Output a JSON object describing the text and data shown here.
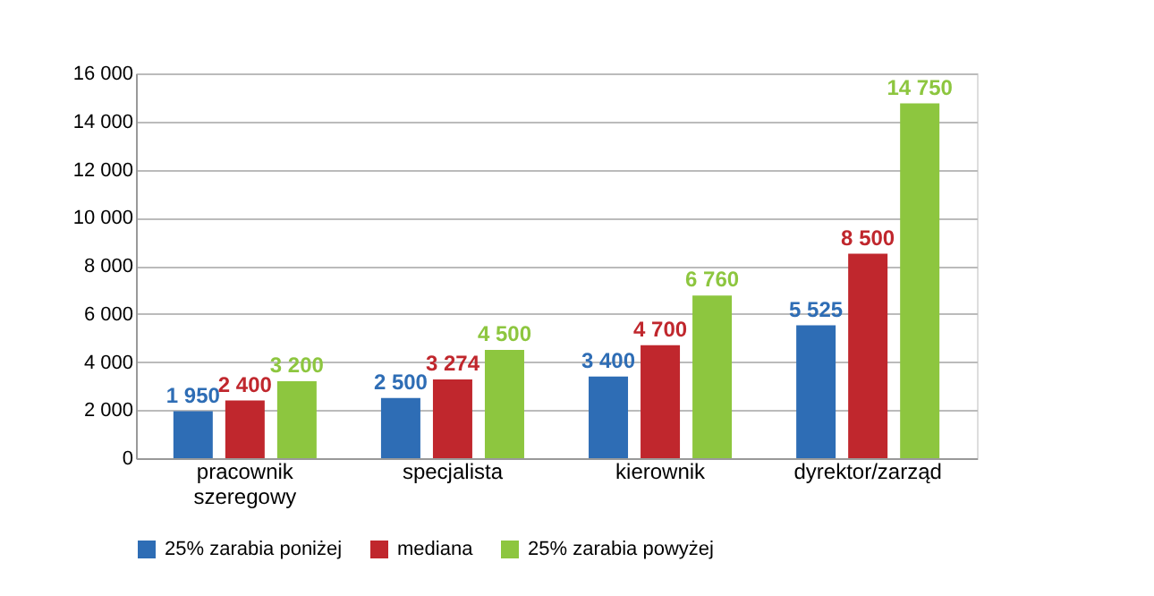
{
  "chart_data": {
    "type": "bar",
    "categories": [
      "pracownik\nszeregowy",
      "specjalista",
      "kierownik",
      "dyrektor/zarząd"
    ],
    "series": [
      {
        "name": "25% zarabia poniżej",
        "color": "#2e6db5",
        "values": [
          1950,
          2500,
          3400,
          5525
        ],
        "value_labels": [
          "1 950",
          "2 500",
          "3 400",
          "5 525"
        ]
      },
      {
        "name": "mediana",
        "color": "#c0272d",
        "values": [
          2400,
          3274,
          4700,
          8500
        ],
        "value_labels": [
          "2 400",
          "3 274",
          "4 700",
          "8 500"
        ]
      },
      {
        "name": "25% zarabia powyżej",
        "color": "#8dc63f",
        "values": [
          3200,
          4500,
          6760,
          14750
        ],
        "value_labels": [
          "3 200",
          "4 500",
          "6 760",
          "14 750"
        ]
      }
    ],
    "ylim": [
      0,
      16000
    ],
    "yticks": [
      {
        "value": 0,
        "label": "0"
      },
      {
        "value": 2000,
        "label": "2 000"
      },
      {
        "value": 4000,
        "label": "4 000"
      },
      {
        "value": 6000,
        "label": "6 000"
      },
      {
        "value": 8000,
        "label": "8 000"
      },
      {
        "value": 10000,
        "label": "10 000"
      },
      {
        "value": 12000,
        "label": "12 000"
      },
      {
        "value": 14000,
        "label": "14 000"
      },
      {
        "value": 16000,
        "label": "16 000"
      }
    ],
    "grid": "y",
    "legend": "bottom"
  }
}
